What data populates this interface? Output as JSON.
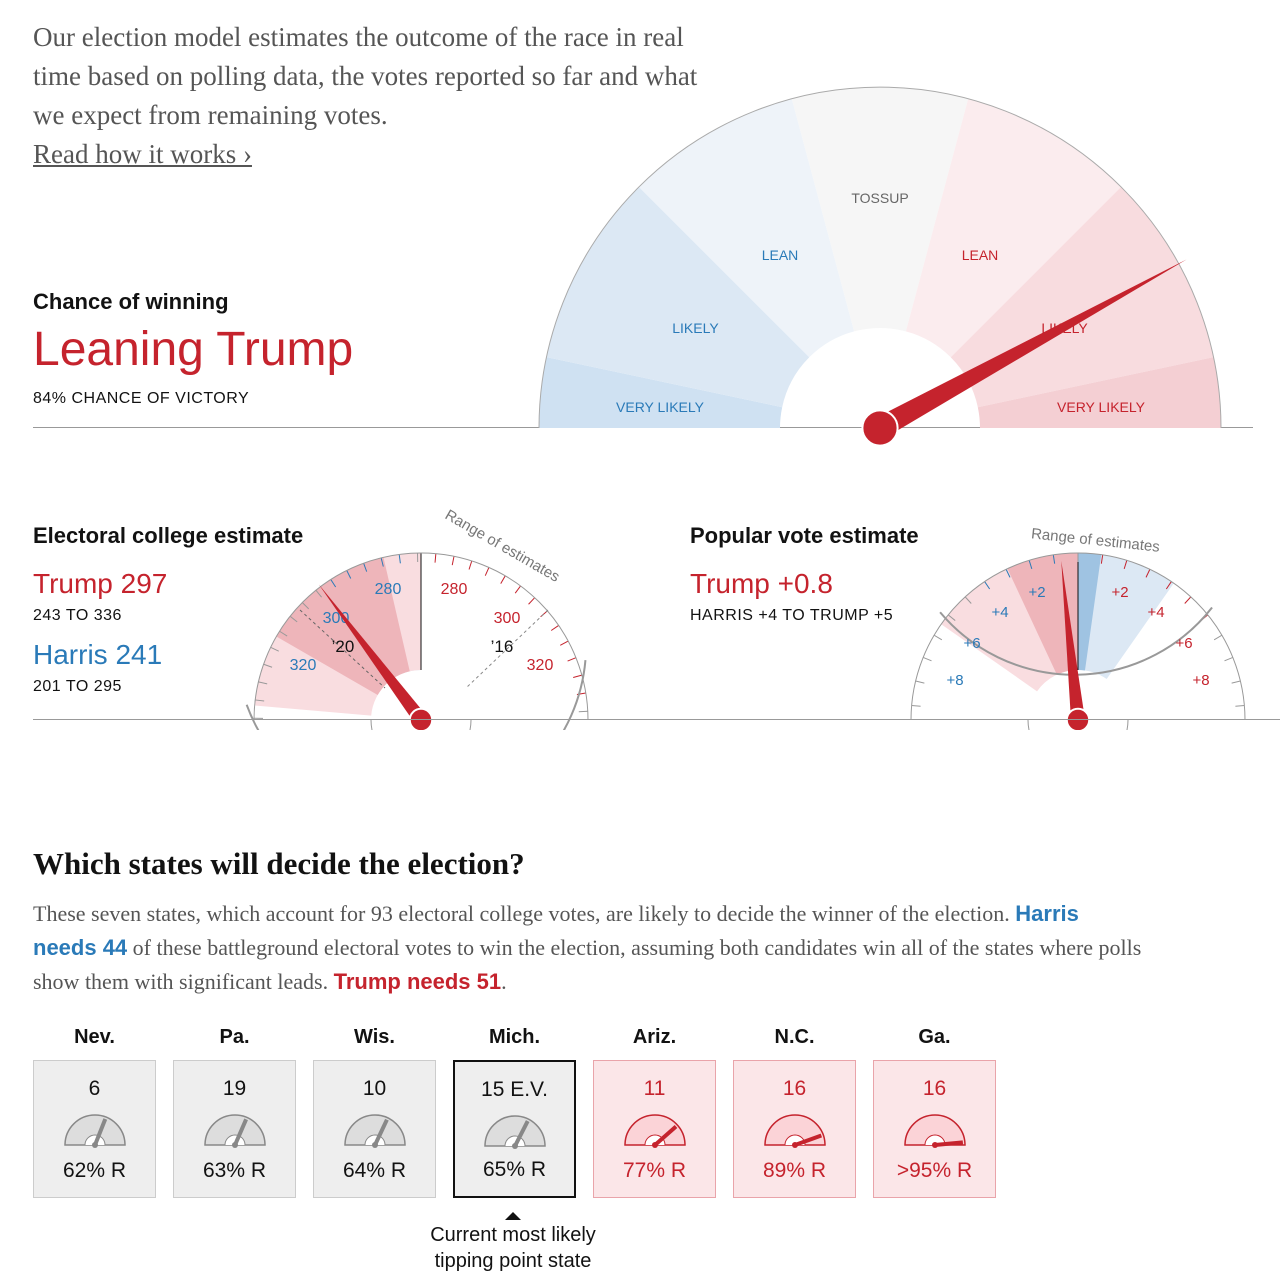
{
  "intro": {
    "text": "Our election model estimates the outcome of the race in real time based on polling data, the votes reported so far and what we expect from remaining votes.",
    "link": "Read how it works ›"
  },
  "chance": {
    "heading": "Chance of winning",
    "status": "Leaning Trump",
    "detail": "84% CHANCE OF VICTORY",
    "value": 84,
    "sectors": [
      "VERY LIKELY",
      "LIKELY",
      "LEAN",
      "TOSSUP",
      "LEAN",
      "LIKELY",
      "VERY LIKELY"
    ]
  },
  "electoral": {
    "heading": "Electoral college estimate",
    "trump": "Trump 297",
    "trump_range": "243 TO 336",
    "harris": "Harris 241",
    "harris_range": "201 TO 295",
    "range_label": "Range of estimates",
    "ticks_blue": [
      "280",
      "300",
      "320"
    ],
    "ticks_red": [
      "280",
      "300",
      "320"
    ],
    "marker_20": "’20",
    "marker_16": "’16",
    "value": 297
  },
  "popular": {
    "heading": "Popular vote estimate",
    "trump": "Trump +0.8",
    "range": "HARRIS +4 TO TRUMP +5",
    "range_label": "Range of estimates",
    "ticks_blue": [
      "+2",
      "+4",
      "+6",
      "+8"
    ],
    "ticks_red": [
      "+2",
      "+4",
      "+6",
      "+8"
    ],
    "value": 0.8
  },
  "states": {
    "heading": "Which states will decide the election?",
    "p1": "These seven states, which account for 93 electoral college votes, are likely to decide the winner of the election. ",
    "harris_needs": "Harris needs 44",
    "p2": " of these battleground electoral votes to win the election, assuming both candidates win all of the states where polls show them with significant leads. ",
    "trump_needs": "Trump needs 51",
    "p3": ".",
    "items": [
      {
        "name": "Nev.",
        "ev": "6",
        "pct": "62% R",
        "p": 62
      },
      {
        "name": "Pa.",
        "ev": "19",
        "pct": "63% R",
        "p": 63
      },
      {
        "name": "Wis.",
        "ev": "10",
        "pct": "64% R",
        "p": 64
      },
      {
        "name": "Mich.",
        "ev": "15  E.V.",
        "pct": "65% R",
        "p": 65
      },
      {
        "name": "Ariz.",
        "ev": "11",
        "pct": "77% R",
        "p": 77
      },
      {
        "name": "N.C.",
        "ev": "16",
        "pct": "89% R",
        "p": 89
      },
      {
        "name": "Ga.",
        "ev": "16",
        "pct": ">95% R",
        "p": 97
      }
    ],
    "tipping": "Current most likely tipping point state"
  },
  "colors": {
    "red": "#c5232d",
    "blue": "#2a7ab8"
  }
}
